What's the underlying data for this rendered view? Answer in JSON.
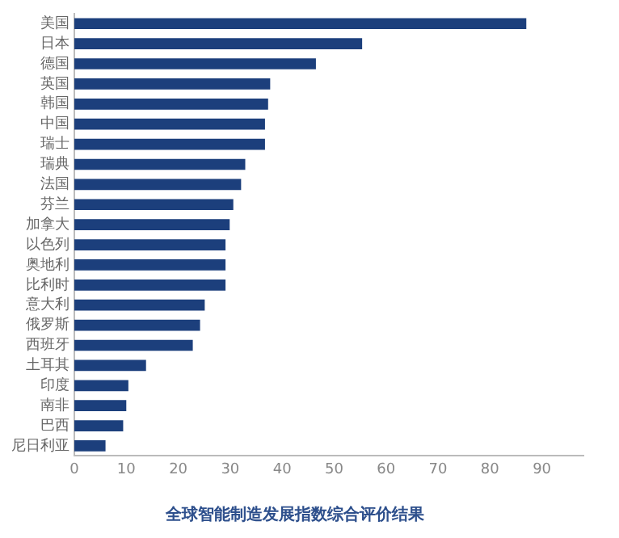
{
  "chart_data": {
    "type": "bar",
    "orientation": "horizontal",
    "title": "全球智能制造发展指数综合评价结果",
    "categories": [
      "美国",
      "日本",
      "德国",
      "英国",
      "韩国",
      "中国",
      "瑞士",
      "瑞典",
      "法国",
      "芬兰",
      "加拿大",
      "以色列",
      "奥地利",
      "比利时",
      "意大利",
      "俄罗斯",
      "西班牙",
      "土耳其",
      "印度",
      "南非",
      "巴西",
      "尼日利亚"
    ],
    "values": [
      87,
      55.4,
      46.5,
      37.7,
      37.3,
      36.7,
      36.7,
      32.9,
      32.1,
      30.6,
      29.9,
      29.1,
      29.1,
      29.1,
      25.1,
      24.2,
      22.8,
      13.8,
      10.4,
      10,
      9.4,
      6
    ],
    "color": "#1c3f7c",
    "xlim": [
      0,
      98
    ],
    "xticks": [
      0,
      10,
      20,
      30,
      40,
      50,
      60,
      70,
      80,
      90
    ],
    "grid": false,
    "legend": false
  }
}
